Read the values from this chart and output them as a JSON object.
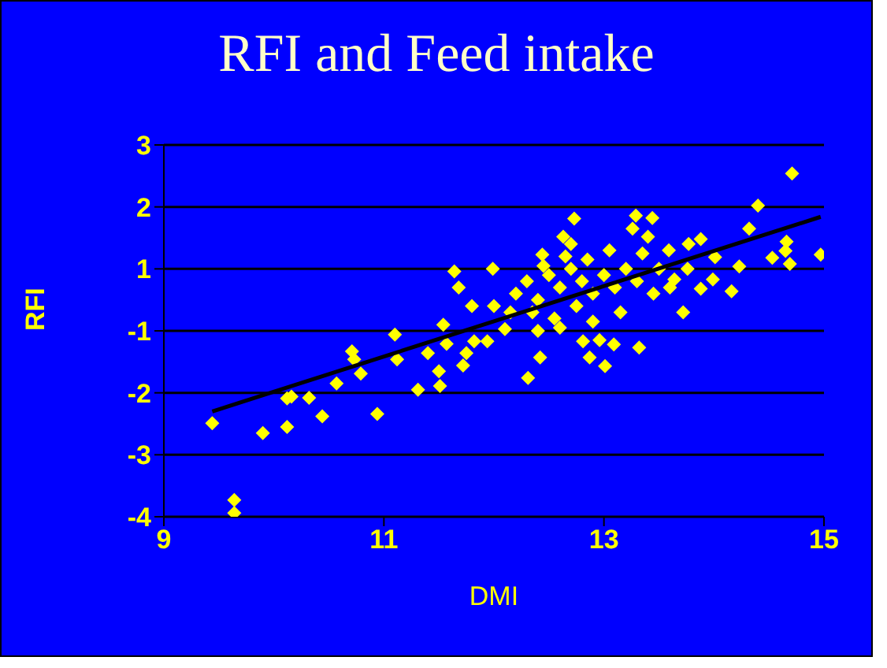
{
  "chart_data": {
    "type": "scatter",
    "title": "RFI and Feed intake",
    "xlabel": "DMI",
    "ylabel": "RFI",
    "xlim": [
      9,
      15
    ],
    "xticks": [
      9,
      11,
      13,
      15
    ],
    "ylim": [
      -3.5,
      2.5
    ],
    "yticks": [
      {
        "value": 2.5,
        "label": "3"
      },
      {
        "value": 1.5,
        "label": "2"
      },
      {
        "value": 0.5,
        "label": "1"
      },
      {
        "value": -0.5,
        "label": "-1"
      },
      {
        "value": -1.5,
        "label": "-2"
      },
      {
        "value": -2.5,
        "label": "-3"
      },
      {
        "value": -3.5,
        "label": "-4"
      }
    ],
    "grid": "y",
    "series": [
      {
        "marker": "diamond",
        "color": "#ffff00",
        "x": [
          9.44,
          9.64,
          9.64,
          9.9,
          10.12,
          10.12,
          10.16,
          10.32,
          10.44,
          10.57,
          10.71,
          10.73,
          10.79,
          10.94,
          11.1,
          11.12,
          11.31,
          11.4,
          11.5,
          11.51,
          11.72,
          11.75,
          11.54,
          11.64,
          11.68,
          11.8,
          11.57,
          14.71,
          14.4,
          14.97,
          14.32,
          14.66,
          14.65,
          14.53,
          14.69,
          14.23,
          14.16,
          13.99,
          13.88,
          14.01,
          13.88,
          13.76,
          13.72,
          13.64,
          13.77,
          13.59,
          13.44,
          13.29,
          13.26,
          13.4,
          12.73,
          12.63,
          12.44,
          11.99,
          12.31,
          12.42,
          13.01,
          12.87,
          12.81,
          12.96,
          13.09,
          13.32,
          12.1,
          11.94,
          11.82,
          12.2,
          12.3,
          12.4,
          12.5,
          12.6,
          12.7,
          12.8,
          12.9,
          13.0,
          12.35,
          12.55,
          12.75,
          12.15,
          12.0,
          12.45,
          12.65,
          12.85,
          13.1,
          13.2,
          13.3,
          13.15,
          12.9,
          12.6,
          12.4,
          12.7,
          13.05,
          13.5,
          13.45,
          13.6,
          13.35
        ],
        "values": [
          -1.99,
          -3.23,
          -3.44,
          -2.15,
          -2.05,
          -1.59,
          -1.56,
          -1.58,
          -1.88,
          -1.35,
          -0.83,
          -0.96,
          -1.19,
          -1.84,
          -0.56,
          -0.96,
          -1.45,
          -0.86,
          -1.15,
          -1.39,
          -1.06,
          -0.86,
          -0.4,
          0.46,
          0.2,
          -0.1,
          -0.71,
          2.04,
          1.52,
          0.73,
          1.15,
          0.94,
          0.79,
          0.68,
          0.58,
          0.54,
          0.14,
          0.33,
          0.98,
          0.69,
          0.18,
          0.5,
          -0.2,
          0.33,
          0.9,
          0.8,
          1.32,
          1.36,
          1.15,
          1.02,
          1.31,
          1.02,
          0.73,
          0.5,
          -1.26,
          -0.93,
          -1.07,
          -0.93,
          -0.67,
          -0.65,
          -0.72,
          -0.77,
          -0.47,
          -0.67,
          -0.67,
          0.1,
          0.3,
          0.0,
          0.4,
          0.2,
          0.5,
          0.3,
          0.1,
          0.4,
          -0.2,
          -0.3,
          -0.1,
          -0.2,
          -0.1,
          0.55,
          0.7,
          0.65,
          0.2,
          0.5,
          0.3,
          -0.2,
          -0.35,
          -0.45,
          -0.5,
          0.9,
          0.8,
          0.5,
          0.1,
          0.2,
          0.75
        ]
      },
      {
        "type": "line",
        "marker": "none",
        "color": "#000000",
        "x": [
          9.44,
          14.97
        ],
        "values": [
          -1.8,
          1.34
        ]
      }
    ]
  }
}
